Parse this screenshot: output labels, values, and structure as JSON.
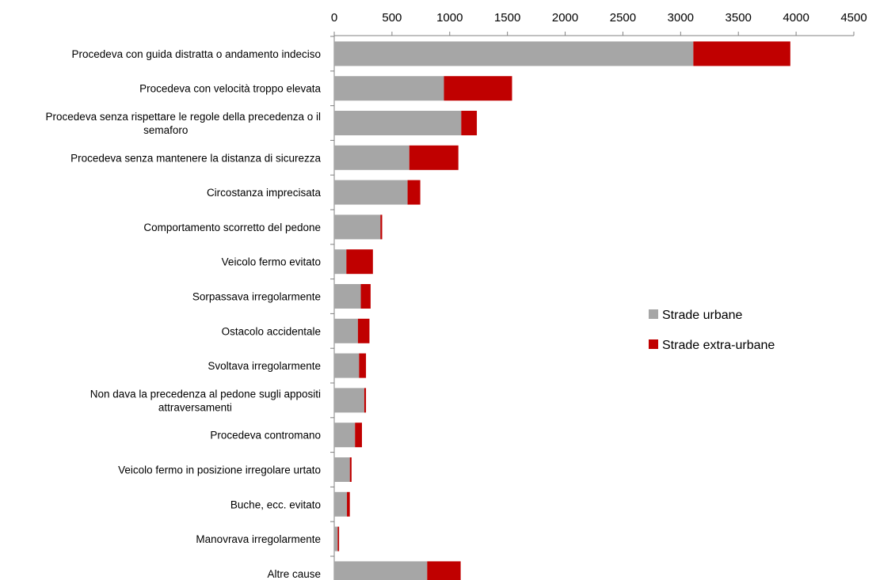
{
  "chart_data": {
    "type": "bar",
    "orientation": "horizontal",
    "stacked": true,
    "title": "",
    "xlabel": "",
    "ylabel": "",
    "xlim": [
      0,
      4500
    ],
    "x_ticks": [
      0,
      500,
      1000,
      1500,
      2000,
      2500,
      3000,
      3500,
      4000,
      4500
    ],
    "x_axis_position": "top",
    "grid": false,
    "legend_position": "right",
    "categories": [
      [
        "Procedeva con guida distratta o andamento indeciso"
      ],
      [
        "Procedeva con velocità troppo elevata"
      ],
      [
        "Procedeva senza rispettare le regole della precedenza o il",
        "semaforo"
      ],
      [
        "Procedeva senza mantenere la distanza di sicurezza"
      ],
      [
        "Circostanza imprecisata"
      ],
      [
        "Comportamento scorretto del pedone"
      ],
      [
        "Veicolo fermo evitato"
      ],
      [
        "Sorpassava irregolarmente"
      ],
      [
        "Ostacolo accidentale"
      ],
      [
        "Svoltava irregolarmente"
      ],
      [
        "Non dava la precedenza al pedone sugli appositi",
        "attraversamenti"
      ],
      [
        "Procedeva contromano"
      ],
      [
        "Veicolo fermo in posizione irregolare urtato"
      ],
      [
        "Buche, ecc. evitato"
      ],
      [
        "Manovrava irregolarmente"
      ],
      [
        "Altre cause"
      ]
    ],
    "series": [
      {
        "name": "Strade urbane",
        "color": "#a6a6a6",
        "values": [
          3110,
          950,
          1100,
          650,
          635,
          400,
          105,
          230,
          205,
          215,
          260,
          180,
          135,
          110,
          30,
          805
        ]
      },
      {
        "name": "Strade extra-urbane",
        "color": "#c00000",
        "values": [
          840,
          590,
          135,
          425,
          110,
          15,
          230,
          85,
          100,
          60,
          15,
          60,
          15,
          25,
          12,
          290
        ]
      }
    ]
  }
}
